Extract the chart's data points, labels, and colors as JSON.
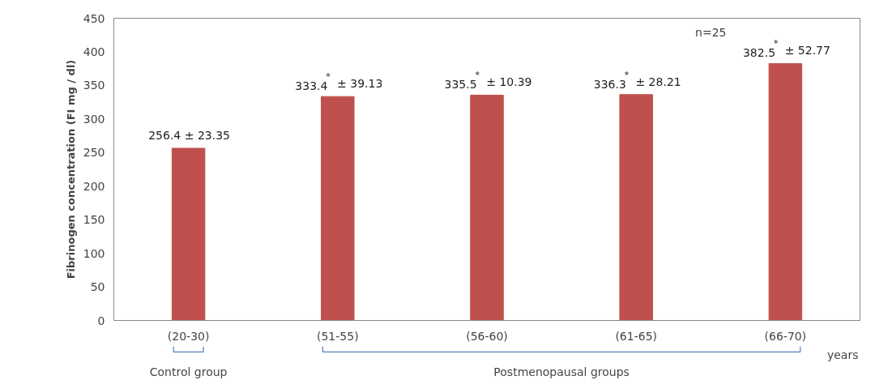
{
  "chart_data": {
    "type": "bar",
    "ylabel": "Fibrinogen concentration (FI mg / dl)",
    "categories": [
      "(20-30)",
      "(51-55)",
      "(56-60)",
      "(61-65)",
      "(66-70)"
    ],
    "values": [
      256.4,
      333.4,
      335.5,
      336.3,
      382.5
    ],
    "color": "#c0504d",
    "value_labels": [
      "256.4 ± 23.35",
      "333.4$^{*}$ ± 39.13",
      "335.5$^{*}$ ± 10.39",
      "336.3$^{*}$ ± 28.21",
      "382.5$^{*}$ ± 52.77"
    ],
    "ylim": [
      0,
      450
    ],
    "yticks": [
      0,
      50,
      100,
      150,
      200,
      250,
      300,
      350,
      400,
      450
    ],
    "grid": false,
    "annotations": [
      "n=25",
      "years",
      "Control group",
      "Postmenopausal groups"
    ]
  }
}
